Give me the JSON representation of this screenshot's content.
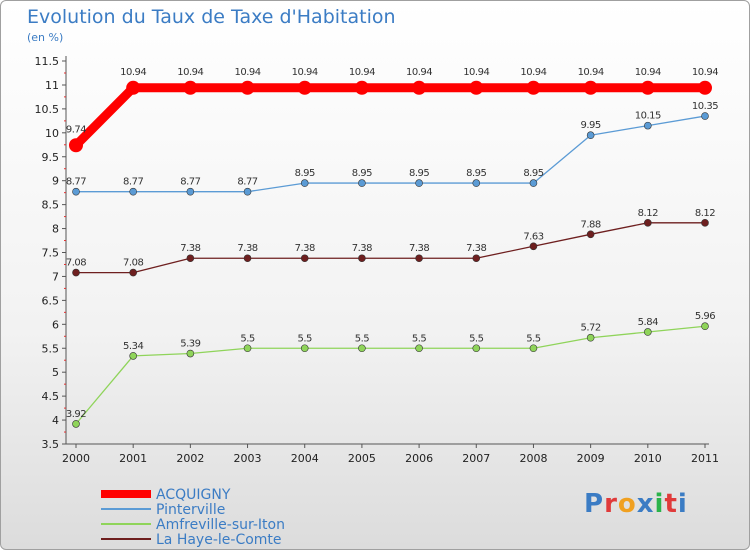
{
  "header": {
    "title": "Evolution du Taux de Taxe d'Habitation",
    "unit": "(en %)"
  },
  "logo": {
    "text": "Proxiti",
    "colors": [
      "#3b7cc4",
      "#e03a3a",
      "#f0a020",
      "#3b7cc4",
      "#2bb34b",
      "#e03a3a",
      "#3b7cc4"
    ]
  },
  "chart_data": {
    "type": "line",
    "x": [
      "2000",
      "2001",
      "2002",
      "2003",
      "2004",
      "2005",
      "2006",
      "2007",
      "2008",
      "2009",
      "2010",
      "2011"
    ],
    "ylim": [
      3.5,
      11.5
    ],
    "yticks": [
      "3.5",
      "4",
      "4.5",
      "5",
      "5.5",
      "6",
      "6.5",
      "7",
      "7.5",
      "8",
      "8.5",
      "9",
      "9.5",
      "10",
      "10.5",
      "11",
      "11.5"
    ],
    "grid": false,
    "legend_position": "bottom-left",
    "series": [
      {
        "name": "ACQUIGNY",
        "color": "#ff0000",
        "values": [
          9.74,
          10.94,
          10.94,
          10.94,
          10.94,
          10.94,
          10.94,
          10.94,
          10.94,
          10.94,
          10.94,
          10.94
        ],
        "labels": [
          "9.74",
          "10.94",
          "10.94",
          "10.94",
          "10.94",
          "10.94",
          "10.94",
          "10.94",
          "10.94",
          "10.94",
          "10.94",
          "10.94"
        ]
      },
      {
        "name": "Pinterville",
        "color": "#5b9bd5",
        "values": [
          8.77,
          8.77,
          8.77,
          8.77,
          8.95,
          8.95,
          8.95,
          8.95,
          8.95,
          9.95,
          10.15,
          10.35
        ],
        "labels": [
          "8.77",
          "8.77",
          "8.77",
          "8.77",
          "8.95",
          "8.95",
          "8.95",
          "8.95",
          "8.95",
          "9.95",
          "10.15",
          "10.35"
        ]
      },
      {
        "name": "Amfreville-sur-Iton",
        "color": "#8fd45a",
        "values": [
          3.92,
          5.34,
          5.39,
          5.5,
          5.5,
          5.5,
          5.5,
          5.5,
          5.5,
          5.72,
          5.84,
          5.96
        ],
        "labels": [
          "3.92",
          "5.34",
          "5.39",
          "5.5",
          "5.5",
          "5.5",
          "5.5",
          "5.5",
          "5.5",
          "5.72",
          "5.84",
          "5.96"
        ]
      },
      {
        "name": "La Haye-le-Comte",
        "color": "#6e1f1f",
        "values": [
          7.08,
          7.08,
          7.38,
          7.38,
          7.38,
          7.38,
          7.38,
          7.38,
          7.63,
          7.88,
          8.12,
          8.12
        ],
        "labels": [
          "7.08",
          "7.08",
          "7.38",
          "7.38",
          "7.38",
          "7.38",
          "7.38",
          "7.38",
          "7.63",
          "7.88",
          "8.12",
          "8.12"
        ]
      }
    ]
  }
}
